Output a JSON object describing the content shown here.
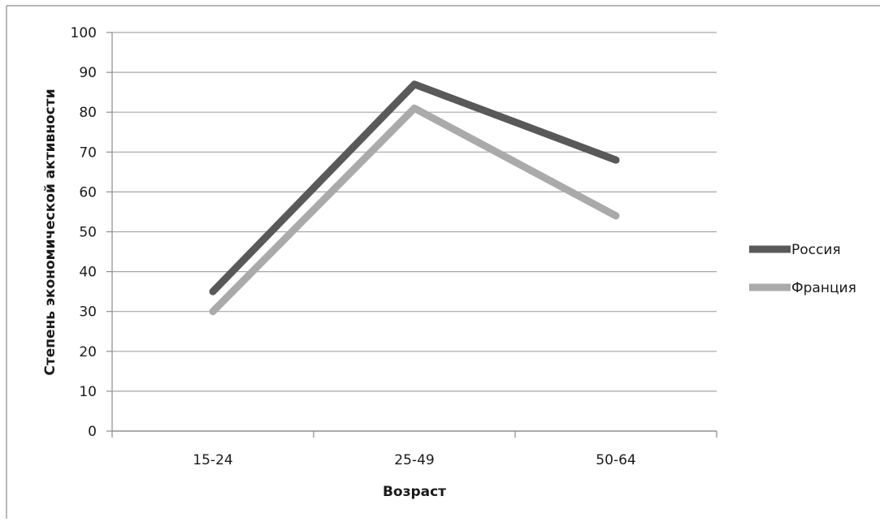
{
  "chart_data": {
    "type": "line",
    "title": "",
    "xlabel": "Возраст",
    "ylabel": "Степень экономической активности",
    "categories": [
      "15-24",
      "25-49",
      "50-64"
    ],
    "ylim": [
      0,
      100
    ],
    "yticks": [
      0,
      10,
      20,
      30,
      40,
      50,
      60,
      70,
      80,
      90,
      100
    ],
    "grid": true,
    "legend": "right",
    "series": [
      {
        "name": "Россия",
        "values": [
          35,
          87,
          68
        ],
        "color": "#595959"
      },
      {
        "name": "Франция",
        "values": [
          30,
          81,
          54
        ],
        "color": "#aaaaaa"
      }
    ]
  }
}
